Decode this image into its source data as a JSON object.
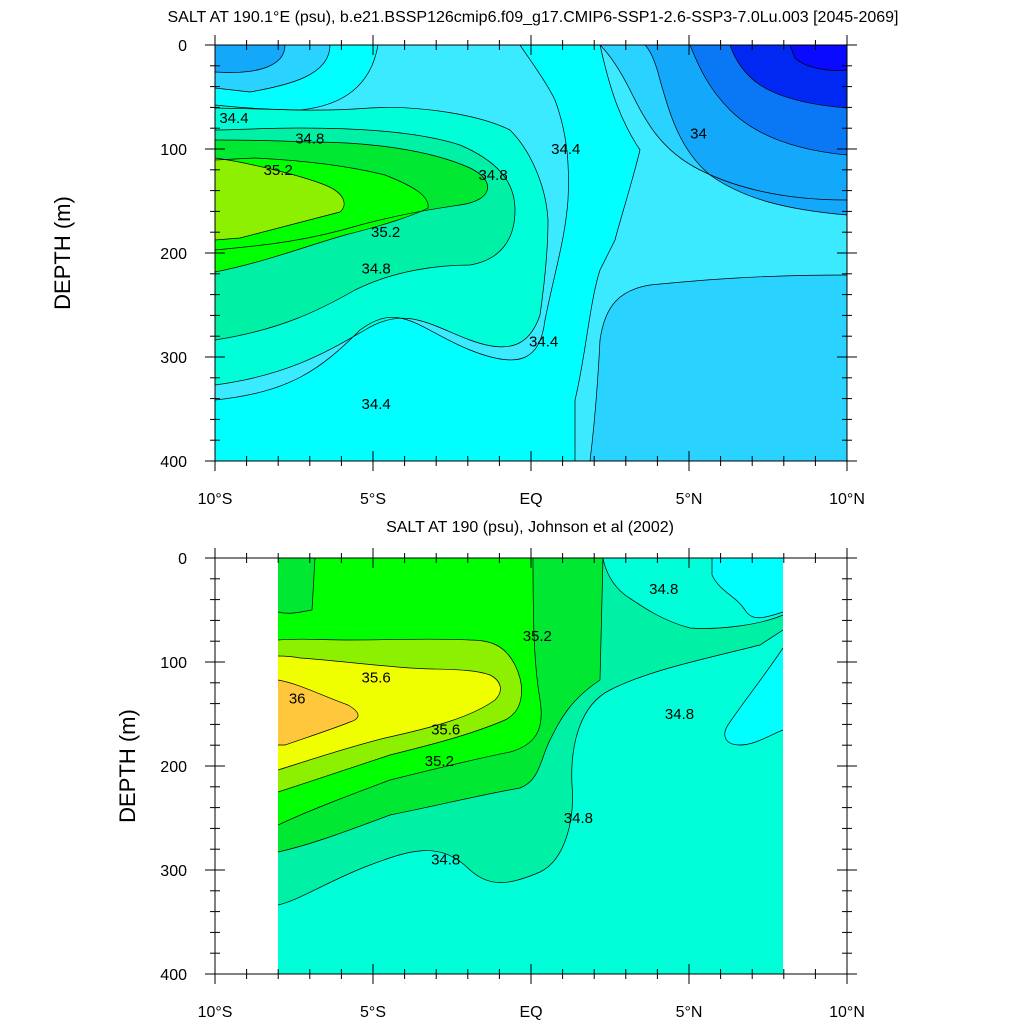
{
  "chart_data": [
    {
      "type": "contour",
      "title": "SALT AT 190.1°E (psu), b.e21.BSSP126cmip6.f09_g17.CMIP6-SSP1-2.6-SSP3-7.0Lu.003 [2045-2069]",
      "ylabel": "DEPTH (m)",
      "xlabel": "",
      "xlim": [
        -10,
        10
      ],
      "ylim": [
        400,
        0
      ],
      "x_tick_values": [
        -10,
        -5,
        0,
        5,
        10
      ],
      "x_tick_labels": [
        "10°S",
        "5°S",
        "EQ",
        "5°N",
        "10°N"
      ],
      "y_tick_values": [
        0,
        100,
        200,
        300,
        400
      ],
      "y_tick_labels": [
        "0",
        "100",
        "200",
        "300",
        "400"
      ],
      "contour_levels": [
        33.8,
        34.0,
        34.2,
        34.4,
        34.6,
        34.8,
        35.0,
        35.2,
        35.4
      ],
      "contour_labels": [
        {
          "text": "34.4",
          "lat": -9.4,
          "depth": 70
        },
        {
          "text": "34.8",
          "lat": -7.0,
          "depth": 90
        },
        {
          "text": "35.2",
          "lat": -8.0,
          "depth": 120
        },
        {
          "text": "34.8",
          "lat": -1.2,
          "depth": 125
        },
        {
          "text": "35.2",
          "lat": -4.6,
          "depth": 180
        },
        {
          "text": "34.8",
          "lat": -4.9,
          "depth": 215
        },
        {
          "text": "34.4",
          "lat": 1.1,
          "depth": 100
        },
        {
          "text": "34",
          "lat": 5.3,
          "depth": 85
        },
        {
          "text": "34.4",
          "lat": 0.4,
          "depth": 285
        },
        {
          "text": "34.4",
          "lat": -4.9,
          "depth": 345
        }
      ]
    },
    {
      "type": "contour",
      "title": "SALT AT 190 (psu), Johnson et al (2002)",
      "ylabel": "DEPTH (m)",
      "xlabel": "",
      "xlim": [
        -10,
        10
      ],
      "ylim": [
        400,
        0
      ],
      "x_tick_values": [
        -10,
        -5,
        0,
        5,
        10
      ],
      "x_tick_labels": [
        "10°S",
        "5°S",
        "EQ",
        "5°N",
        "10°N"
      ],
      "y_tick_values": [
        0,
        100,
        200,
        300,
        400
      ],
      "y_tick_labels": [
        "0",
        "100",
        "200",
        "300",
        "400"
      ],
      "data_coverage_lat": [
        -8,
        8
      ],
      "contour_levels": [
        34.4,
        34.6,
        34.8,
        35.0,
        35.2,
        35.4,
        35.6,
        35.8,
        36.0
      ],
      "contour_labels": [
        {
          "text": "34.8",
          "lat": 4.2,
          "depth": 30
        },
        {
          "text": "35.2",
          "lat": 0.2,
          "depth": 75
        },
        {
          "text": "35.6",
          "lat": -4.9,
          "depth": 115
        },
        {
          "text": "36",
          "lat": -7.4,
          "depth": 135
        },
        {
          "text": "35.6",
          "lat": -2.7,
          "depth": 165
        },
        {
          "text": "35.2",
          "lat": -2.9,
          "depth": 195
        },
        {
          "text": "34.8",
          "lat": 4.7,
          "depth": 150
        },
        {
          "text": "34.8",
          "lat": 1.5,
          "depth": 250
        },
        {
          "text": "34.8",
          "lat": -2.7,
          "depth": 290
        }
      ]
    }
  ],
  "colors": {
    "c33_8": "#0028f2",
    "c34_0": "#0a78f5",
    "c34_2": "#14a8fa",
    "c34_4": "#2ad2ff",
    "c34_6": "#3ceaff",
    "c34_8": "#00ffff",
    "c35_0": "#00ffd8",
    "c35_2": "#00f0a6",
    "c35_4": "#00e832",
    "c35_6": "#00ff00",
    "c35_8": "#8cf000",
    "c36_0": "#f0ff00",
    "c36_2": "#ffc83c"
  }
}
